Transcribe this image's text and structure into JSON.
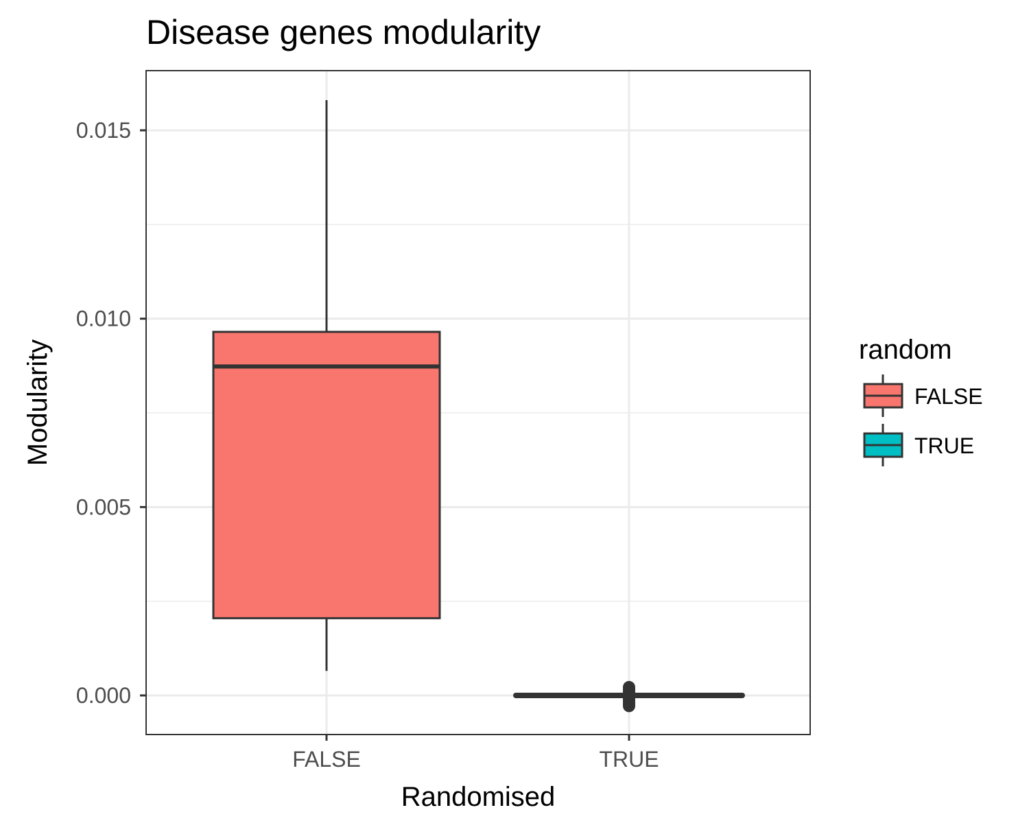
{
  "chart_data": {
    "type": "box",
    "title": "Disease genes modularity",
    "xlabel": "Randomised",
    "ylabel": "Modularity",
    "categories": [
      "FALSE",
      "TRUE"
    ],
    "y_ticks": [
      0.0,
      0.005,
      0.01,
      0.015
    ],
    "y_tick_labels": [
      "0.000",
      "0.005",
      "0.010",
      "0.015"
    ],
    "ylim": [
      -0.001,
      0.0166
    ],
    "grid": true,
    "legend": {
      "title": "random",
      "position": "right",
      "entries": [
        {
          "label": "FALSE",
          "color": "#F8766D"
        },
        {
          "label": "TRUE",
          "color": "#00BFC4"
        }
      ]
    },
    "boxes": [
      {
        "category": "FALSE",
        "color": "#F8766D",
        "lower_whisker": 0.00065,
        "q1": 0.00205,
        "median": 0.00873,
        "q3": 0.00965,
        "upper_whisker": 0.0158,
        "outliers": []
      },
      {
        "category": "TRUE",
        "color": "#00BFC4",
        "lower_whisker": 0.0,
        "q1": 0.0,
        "median": 0.0,
        "q3": 0.0,
        "upper_whisker": 0.0,
        "outliers": [
          0.00022,
          0.00017,
          0.00012,
          7e-05,
          -8e-05,
          -0.00013,
          -0.00018,
          -0.00023,
          -0.00028
        ]
      }
    ]
  }
}
